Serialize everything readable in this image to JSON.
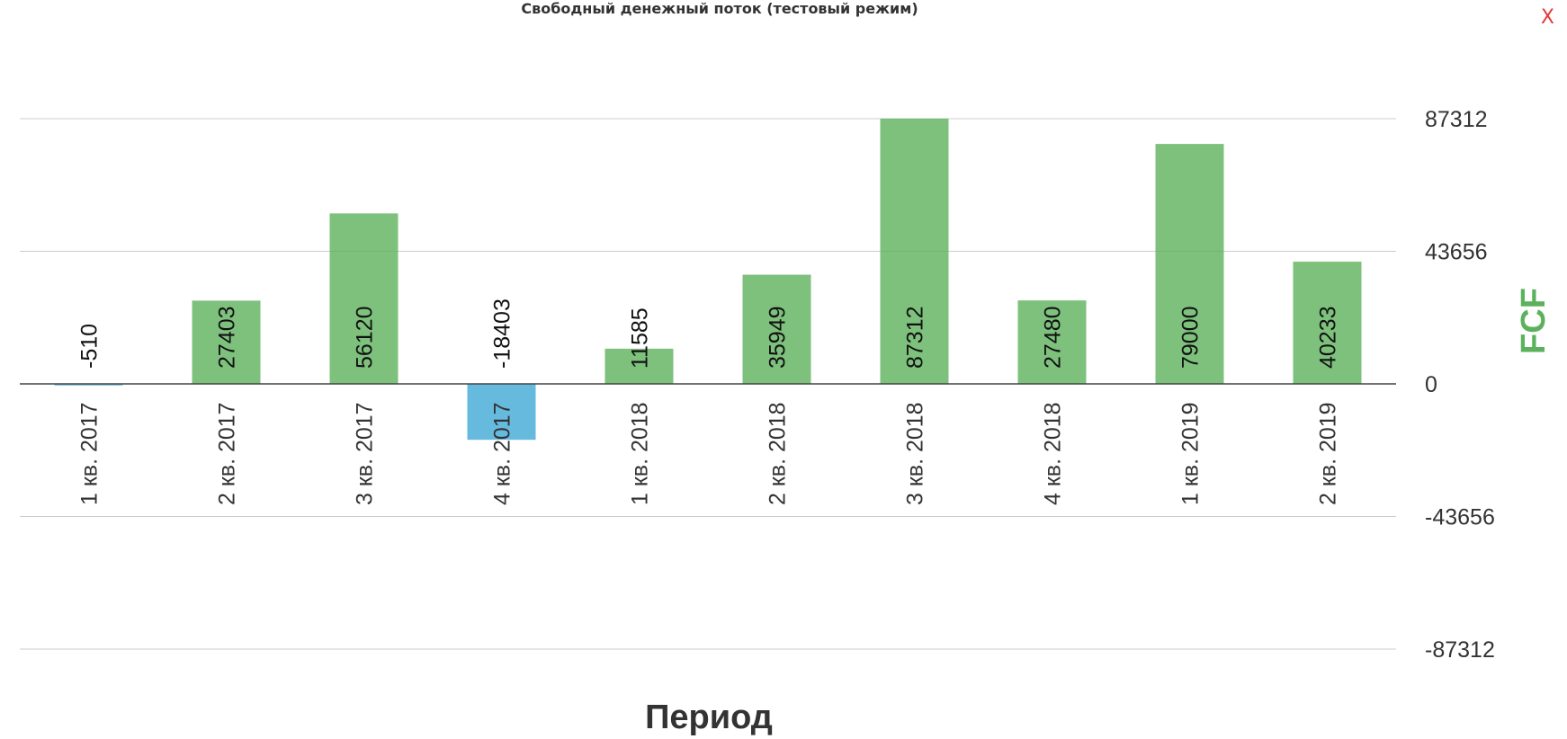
{
  "title": "Свободный денежный поток (тестовый режим)",
  "close_label": "X",
  "colors": {
    "positive": "#5cb25c",
    "negative": "#3fa9d6",
    "close": "#e53935",
    "axis_title": "#5cb25c"
  },
  "chart_data": {
    "type": "bar",
    "title": "Свободный денежный поток (тестовый режим)",
    "xlabel": "Период",
    "ylabel": "FCF",
    "categories": [
      "1 кв. 2017",
      "2 кв. 2017",
      "3 кв. 2017",
      "4 кв. 2017",
      "1 кв. 2018",
      "2 кв. 2018",
      "3 кв. 2018",
      "4 кв. 2018",
      "1 кв. 2019",
      "2 кв. 2019"
    ],
    "values": [
      -510,
      27403,
      56120,
      -18403,
      11585,
      35949,
      87312,
      27480,
      79000,
      40233
    ],
    "data_labels": [
      "-510",
      "27403",
      "56120",
      "-18403",
      "11585",
      "35949",
      "87312",
      "27480",
      "79000",
      "40233"
    ],
    "yticks": [
      87312,
      43656,
      0,
      -43656,
      -87312
    ],
    "ytick_labels": [
      "87312",
      "43656",
      "0",
      "-43656",
      "-87312"
    ],
    "ylim": [
      -87312,
      87312
    ],
    "grid": true,
    "y_axis_position": "right"
  }
}
